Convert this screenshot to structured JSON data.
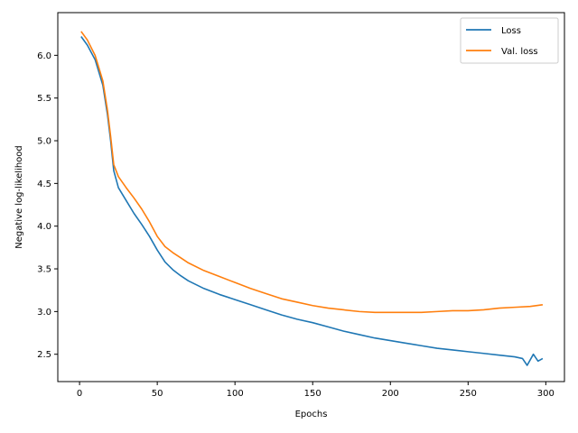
{
  "chart_data": {
    "type": "line",
    "title": "",
    "xlabel": "Epochs",
    "ylabel": "Negative log-likelihood",
    "xlim": [
      -14,
      312
    ],
    "ylim": [
      2.18,
      6.5
    ],
    "xticks": [
      0,
      50,
      100,
      150,
      200,
      250,
      300
    ],
    "yticks": [
      2.5,
      3.0,
      3.5,
      4.0,
      4.5,
      5.0,
      5.5,
      6.0
    ],
    "xtick_labels": [
      "0",
      "50",
      "100",
      "150",
      "200",
      "250",
      "300"
    ],
    "ytick_labels": [
      "2.5",
      "3.0",
      "3.5",
      "4.0",
      "4.5",
      "5.0",
      "5.5",
      "6.0"
    ],
    "grid": false,
    "legend_position": "top-right",
    "series": [
      {
        "name": "Loss",
        "color": "#1f77b4",
        "points": [
          [
            1,
            6.22
          ],
          [
            5,
            6.12
          ],
          [
            10,
            5.95
          ],
          [
            15,
            5.65
          ],
          [
            18,
            5.3
          ],
          [
            20,
            5.0
          ],
          [
            22,
            4.65
          ],
          [
            25,
            4.45
          ],
          [
            30,
            4.3
          ],
          [
            35,
            4.15
          ],
          [
            40,
            4.02
          ],
          [
            45,
            3.88
          ],
          [
            50,
            3.72
          ],
          [
            55,
            3.58
          ],
          [
            60,
            3.49
          ],
          [
            65,
            3.42
          ],
          [
            70,
            3.36
          ],
          [
            80,
            3.27
          ],
          [
            90,
            3.2
          ],
          [
            100,
            3.14
          ],
          [
            110,
            3.08
          ],
          [
            120,
            3.02
          ],
          [
            130,
            2.96
          ],
          [
            140,
            2.91
          ],
          [
            150,
            2.87
          ],
          [
            160,
            2.82
          ],
          [
            170,
            2.77
          ],
          [
            180,
            2.73
          ],
          [
            190,
            2.69
          ],
          [
            200,
            2.66
          ],
          [
            210,
            2.63
          ],
          [
            220,
            2.6
          ],
          [
            230,
            2.57
          ],
          [
            240,
            2.55
          ],
          [
            250,
            2.53
          ],
          [
            260,
            2.51
          ],
          [
            270,
            2.49
          ],
          [
            280,
            2.47
          ],
          [
            285,
            2.45
          ],
          [
            288,
            2.37
          ],
          [
            292,
            2.5
          ],
          [
            295,
            2.42
          ],
          [
            298,
            2.45
          ]
        ]
      },
      {
        "name": "Val. loss",
        "color": "#ff7f0e",
        "points": [
          [
            1,
            6.28
          ],
          [
            5,
            6.18
          ],
          [
            10,
            6.0
          ],
          [
            15,
            5.7
          ],
          [
            18,
            5.35
          ],
          [
            20,
            5.05
          ],
          [
            22,
            4.72
          ],
          [
            25,
            4.58
          ],
          [
            30,
            4.45
          ],
          [
            35,
            4.33
          ],
          [
            40,
            4.2
          ],
          [
            45,
            4.05
          ],
          [
            50,
            3.88
          ],
          [
            55,
            3.76
          ],
          [
            60,
            3.69
          ],
          [
            65,
            3.63
          ],
          [
            70,
            3.57
          ],
          [
            80,
            3.48
          ],
          [
            90,
            3.41
          ],
          [
            100,
            3.34
          ],
          [
            110,
            3.27
          ],
          [
            120,
            3.21
          ],
          [
            130,
            3.15
          ],
          [
            140,
            3.11
          ],
          [
            150,
            3.07
          ],
          [
            160,
            3.04
          ],
          [
            170,
            3.02
          ],
          [
            180,
            3.0
          ],
          [
            190,
            2.99
          ],
          [
            200,
            2.99
          ],
          [
            210,
            2.99
          ],
          [
            220,
            2.99
          ],
          [
            230,
            3.0
          ],
          [
            240,
            3.01
          ],
          [
            250,
            3.01
          ],
          [
            260,
            3.02
          ],
          [
            270,
            3.04
          ],
          [
            280,
            3.05
          ],
          [
            290,
            3.06
          ],
          [
            298,
            3.08
          ]
        ]
      }
    ]
  }
}
